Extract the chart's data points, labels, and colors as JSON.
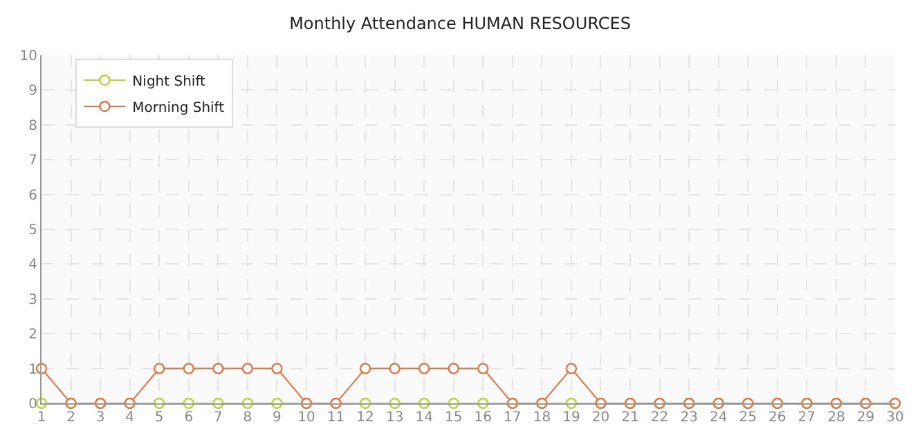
{
  "chart_data": {
    "type": "line",
    "title": "Monthly Attendance HUMAN RESOURCES",
    "x": [
      1,
      2,
      3,
      4,
      5,
      6,
      7,
      8,
      9,
      10,
      11,
      12,
      13,
      14,
      15,
      16,
      17,
      18,
      19,
      20,
      21,
      22,
      23,
      24,
      25,
      26,
      27,
      28,
      29,
      30
    ],
    "series": [
      {
        "name": "Night Shift",
        "color": "#b8d432",
        "values": [
          0,
          0,
          0,
          0,
          0,
          0,
          0,
          0,
          0,
          0,
          0,
          0,
          0,
          0,
          0,
          0,
          0,
          0,
          0,
          0,
          0,
          0,
          0,
          0,
          0,
          0,
          0,
          0,
          0,
          0
        ]
      },
      {
        "name": "Morning Shift",
        "color": "#e5733f",
        "values": [
          1,
          0,
          0,
          0,
          1,
          1,
          1,
          1,
          1,
          0,
          0,
          1,
          1,
          1,
          1,
          1,
          0,
          0,
          1,
          0,
          0,
          0,
          0,
          0,
          0,
          0,
          0,
          0,
          0,
          0
        ]
      }
    ],
    "xlim": [
      1,
      30
    ],
    "xticks": [
      1,
      2,
      3,
      4,
      5,
      6,
      7,
      8,
      9,
      10,
      11,
      12,
      13,
      14,
      15,
      16,
      17,
      18,
      19,
      20,
      21,
      22,
      23,
      24,
      25,
      26,
      27,
      28,
      29,
      30
    ],
    "ylim": [
      0,
      10
    ],
    "yticks": [
      0,
      1,
      2,
      3,
      4,
      5,
      6,
      7,
      8,
      9,
      10
    ],
    "grid": true,
    "legend": "top left",
    "marker": "circle",
    "line_style": "solid"
  }
}
